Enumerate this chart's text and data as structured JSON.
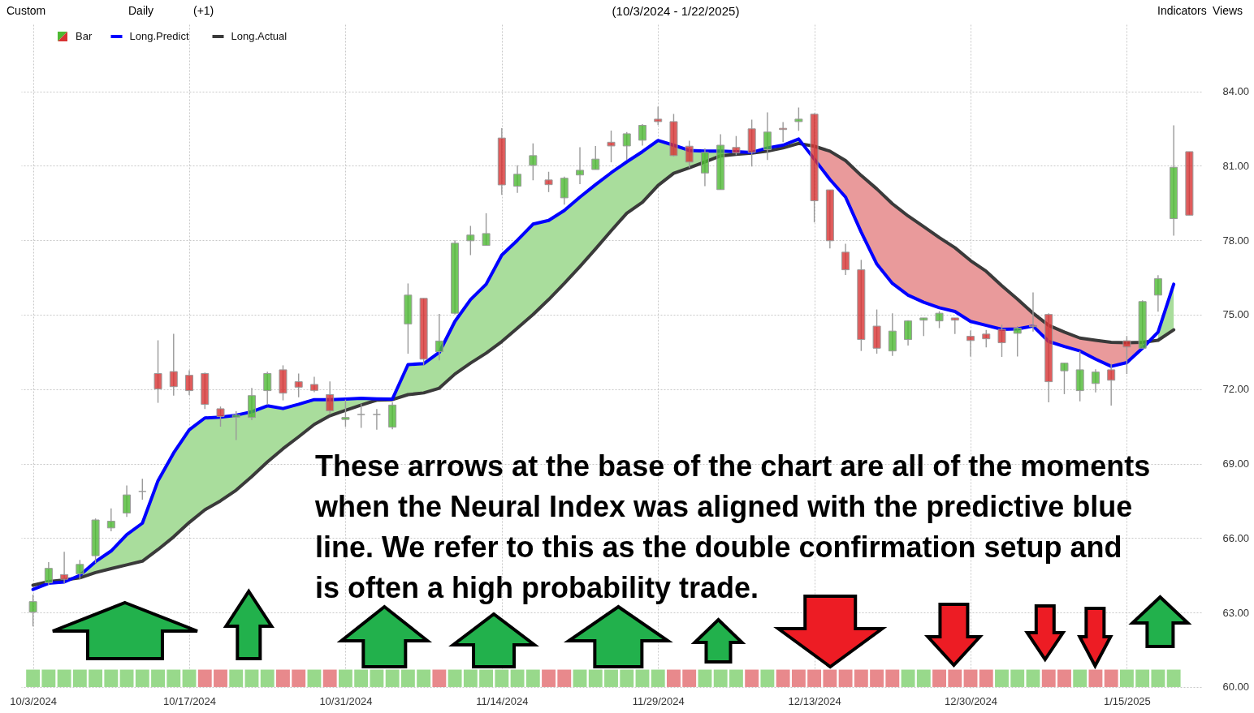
{
  "chart_data": {
    "type": "candlestick",
    "title": "(10/3/2024 - 1/22/2025)",
    "categories": [
      "10/3/2024",
      null,
      null,
      null,
      null,
      null,
      null,
      null,
      null,
      null,
      "10/17/2024",
      null,
      null,
      null,
      null,
      null,
      null,
      null,
      null,
      null,
      "10/31/2024",
      null,
      null,
      null,
      null,
      null,
      null,
      null,
      null,
      null,
      "11/14/2024",
      null,
      null,
      null,
      null,
      null,
      null,
      null,
      null,
      null,
      "11/29/2024",
      null,
      null,
      null,
      null,
      null,
      null,
      null,
      null,
      null,
      "12/13/2024",
      null,
      null,
      null,
      null,
      null,
      null,
      null,
      null,
      null,
      "12/30/2024",
      null,
      null,
      null,
      null,
      null,
      null,
      null,
      null,
      null,
      "1/15/2025",
      null,
      null,
      null,
      null
    ],
    "series": [
      {
        "name": "Bar",
        "ohlc": [
          [
            63.02,
            63.72,
            62.44,
            63.44
          ],
          [
            64.2,
            65.03,
            64.12,
            64.78
          ],
          [
            64.53,
            65.45,
            64.18,
            64.34
          ],
          [
            64.56,
            65.12,
            64.34,
            64.94
          ],
          [
            65.29,
            66.79,
            64.99,
            66.73
          ],
          [
            66.41,
            67.2,
            66.27,
            66.68
          ],
          [
            67.01,
            68.12,
            66.85,
            67.74
          ],
          [
            67.88,
            68.39,
            67.55,
            67.88
          ],
          [
            72.63,
            73.97,
            71.45,
            72.01
          ],
          [
            72.71,
            74.23,
            71.74,
            72.1
          ],
          [
            72.56,
            72.76,
            71.76,
            71.94
          ],
          [
            72.63,
            72.67,
            71.2,
            71.39
          ],
          [
            71.21,
            71.3,
            70.49,
            70.9
          ],
          [
            70.87,
            71.11,
            69.95,
            70.96
          ],
          [
            70.86,
            72.05,
            70.75,
            71.74
          ],
          [
            71.94,
            72.7,
            71.36,
            72.63
          ],
          [
            72.78,
            72.96,
            71.55,
            71.84
          ],
          [
            72.3,
            72.63,
            71.67,
            72.08
          ],
          [
            72.19,
            72.5,
            71.88,
            71.95
          ],
          [
            71.78,
            72.31,
            70.98,
            71.13
          ],
          [
            70.78,
            71.58,
            70.49,
            70.86
          ],
          [
            70.98,
            71.42,
            70.44,
            70.98
          ],
          [
            70.98,
            71.2,
            70.37,
            70.98
          ],
          [
            70.47,
            71.47,
            70.38,
            71.36
          ],
          [
            74.63,
            76.26,
            73.43,
            75.79
          ],
          [
            75.66,
            75.66,
            72.94,
            73.21
          ],
          [
            73.51,
            75.03,
            73.16,
            73.94
          ],
          [
            75.06,
            78.0,
            75.01,
            77.88
          ],
          [
            77.98,
            78.58,
            77.4,
            78.21
          ],
          [
            77.79,
            79.09,
            77.79,
            78.27
          ],
          [
            82.12,
            82.52,
            79.83,
            80.23
          ],
          [
            80.18,
            81.02,
            79.91,
            80.66
          ],
          [
            81.02,
            81.9,
            80.42,
            81.41
          ],
          [
            80.43,
            80.76,
            79.94,
            80.24
          ],
          [
            79.71,
            80.56,
            79.44,
            80.5
          ],
          [
            80.63,
            81.75,
            80.26,
            80.82
          ],
          [
            80.85,
            81.8,
            80.85,
            81.27
          ],
          [
            81.95,
            82.42,
            81.14,
            81.8
          ],
          [
            81.8,
            82.36,
            81.23,
            82.29
          ],
          [
            82.03,
            82.68,
            81.81,
            82.63
          ],
          [
            82.88,
            83.38,
            82.64,
            82.78
          ],
          [
            82.78,
            83.09,
            81.38,
            81.41
          ],
          [
            81.79,
            82.01,
            80.92,
            81.15
          ],
          [
            80.71,
            81.7,
            80.18,
            81.54
          ],
          [
            80.04,
            82.27,
            80.04,
            81.83
          ],
          [
            81.74,
            82.2,
            81.43,
            81.52
          ],
          [
            82.49,
            82.86,
            80.97,
            81.54
          ],
          [
            81.65,
            83.15,
            81.23,
            82.36
          ],
          [
            82.51,
            82.76,
            81.95,
            82.46
          ],
          [
            82.78,
            83.35,
            82.41,
            82.88
          ],
          [
            83.08,
            83.12,
            78.72,
            79.59
          ],
          [
            80.03,
            80.03,
            77.67,
            77.98
          ],
          [
            77.52,
            77.86,
            76.6,
            76.81
          ],
          [
            76.81,
            77.21,
            73.54,
            74.0
          ],
          [
            74.54,
            75.21,
            73.43,
            73.65
          ],
          [
            73.54,
            75.06,
            73.34,
            74.34
          ],
          [
            74.0,
            74.78,
            73.76,
            74.75
          ],
          [
            74.78,
            74.87,
            74.14,
            74.87
          ],
          [
            74.75,
            75.14,
            74.46,
            75.06
          ],
          [
            74.87,
            74.87,
            74.22,
            74.78
          ],
          [
            74.13,
            74.36,
            73.32,
            73.96
          ],
          [
            74.22,
            74.39,
            73.68,
            74.03
          ],
          [
            74.41,
            74.6,
            73.3,
            73.87
          ],
          [
            74.25,
            74.54,
            73.32,
            74.46
          ],
          [
            74.57,
            75.9,
            74.32,
            74.52
          ],
          [
            75.01,
            75.06,
            71.47,
            72.3
          ],
          [
            72.74,
            73.05,
            71.8,
            73.05
          ],
          [
            71.94,
            73.54,
            71.51,
            72.78
          ],
          [
            72.23,
            72.8,
            71.87,
            72.69
          ],
          [
            72.78,
            73.02,
            71.34,
            72.36
          ],
          [
            73.95,
            74.14,
            72.61,
            73.7
          ],
          [
            73.65,
            75.58,
            73.65,
            75.53
          ],
          [
            75.79,
            76.59,
            75.12,
            76.45
          ],
          [
            78.87,
            82.63,
            78.19,
            80.94
          ],
          [
            81.57,
            81.57,
            79.01,
            79.01
          ]
        ],
        "colors": [
          "#4dba33",
          "#4dba33",
          "#d83333",
          "#4dba33",
          "#4dba33",
          "#4dba33",
          "#4dba33",
          "#9a9a9a",
          "#d83333",
          "#d83333",
          "#d83333",
          "#d83333",
          "#d83333",
          "#4dba33",
          "#4dba33",
          "#4dba33",
          "#d83333",
          "#d83333",
          "#d83333",
          "#d83333",
          "#4dba33",
          "#9a9a9a",
          "#9a9a9a",
          "#4dba33",
          "#4dba33",
          "#d83333",
          "#4dba33",
          "#4dba33",
          "#4dba33",
          "#4dba33",
          "#d83333",
          "#4dba33",
          "#4dba33",
          "#d83333",
          "#4dba33",
          "#4dba33",
          "#4dba33",
          "#d83333",
          "#4dba33",
          "#4dba33",
          "#d83333",
          "#d83333",
          "#d83333",
          "#4dba33",
          "#4dba33",
          "#d83333",
          "#d83333",
          "#4dba33",
          "#d83333",
          "#4dba33",
          "#d83333",
          "#d83333",
          "#d83333",
          "#d83333",
          "#d83333",
          "#4dba33",
          "#4dba33",
          "#4dba33",
          "#4dba33",
          "#d83333",
          "#d83333",
          "#d83333",
          "#d83333",
          "#4dba33",
          "#d83333",
          "#d83333",
          "#4dba33",
          "#4dba33",
          "#4dba33",
          "#d83333",
          "#d83333",
          "#4dba33",
          "#4dba33",
          "#4dba33",
          "#d83333"
        ]
      },
      {
        "name": "Long.Predict",
        "type": "line",
        "color": "#0000ff",
        "values": [
          63.93,
          64.18,
          64.23,
          64.5,
          65.05,
          65.48,
          66.14,
          66.6,
          68.31,
          69.43,
          70.36,
          70.84,
          70.87,
          70.95,
          71.09,
          71.33,
          71.22,
          71.39,
          71.58,
          71.58,
          71.6,
          71.63,
          71.61,
          71.6,
          72.99,
          73.03,
          73.48,
          74.73,
          75.61,
          76.23,
          77.4,
          78.0,
          78.65,
          78.8,
          79.2,
          79.74,
          80.24,
          80.72,
          81.16,
          81.57,
          82.02,
          81.83,
          81.62,
          81.59,
          81.59,
          81.57,
          81.54,
          81.72,
          81.83,
          82.08,
          81.27,
          80.45,
          79.74,
          78.33,
          77.04,
          76.26,
          75.79,
          75.5,
          75.28,
          75.13,
          74.73,
          74.57,
          74.41,
          74.43,
          74.54,
          73.92,
          73.72,
          73.54,
          73.21,
          72.92,
          73.07,
          73.65,
          74.3,
          76.23,
          null
        ],
        "lower": [
          null,
          null,
          null,
          64.4,
          64.61,
          64.77,
          64.92,
          65.07,
          65.54,
          66.05,
          66.63,
          67.14,
          67.5,
          67.93,
          68.48,
          69.07,
          69.6,
          70.08,
          70.58,
          70.93,
          71.15,
          71.36,
          71.56,
          71.58,
          71.78,
          71.85,
          72.04,
          72.61,
          73.05,
          73.45,
          73.92,
          74.46,
          75.01,
          75.61,
          76.26,
          76.94,
          77.65,
          78.38,
          79.09,
          79.53,
          80.21,
          80.7,
          80.92,
          81.16,
          81.4,
          81.46,
          81.51,
          81.59,
          81.72,
          81.9,
          null,
          null,
          null,
          null,
          null,
          null,
          null,
          null,
          null,
          null,
          null,
          null,
          null,
          null,
          null,
          null,
          null,
          null,
          null,
          null,
          null,
          null,
          73.97,
          74.39,
          null
        ],
        "upper": [
          null,
          null,
          null,
          64.5,
          65.05,
          65.48,
          66.14,
          66.6,
          68.31,
          69.43,
          70.36,
          70.84,
          70.87,
          70.95,
          71.09,
          71.33,
          71.22,
          71.39,
          71.58,
          71.58,
          71.6,
          71.63,
          71.61,
          71.6,
          72.99,
          73.03,
          73.48,
          74.73,
          75.61,
          76.23,
          77.4,
          78.0,
          78.65,
          78.8,
          79.2,
          79.74,
          80.24,
          80.72,
          81.16,
          81.57,
          82.02,
          81.83,
          81.62,
          81.59,
          81.59,
          81.57,
          81.54,
          81.72,
          81.83,
          82.08,
          null,
          null,
          null,
          null,
          null,
          null,
          null,
          null,
          null,
          null,
          null,
          null,
          null,
          null,
          null,
          null,
          null,
          null,
          null,
          null,
          null,
          null,
          74.3,
          76.23,
          null
        ]
      },
      {
        "name": "Long.Actual",
        "type": "line",
        "color": "#3a3a3a",
        "values": [
          64.1,
          64.25,
          64.31,
          64.4,
          64.61,
          64.77,
          64.92,
          65.07,
          65.54,
          66.05,
          66.63,
          67.14,
          67.5,
          67.93,
          68.48,
          69.07,
          69.6,
          70.08,
          70.58,
          70.93,
          71.15,
          71.36,
          71.56,
          71.58,
          71.78,
          71.85,
          72.04,
          72.61,
          73.05,
          73.45,
          73.92,
          74.46,
          75.01,
          75.61,
          76.26,
          76.94,
          77.65,
          78.38,
          79.09,
          79.53,
          80.21,
          80.7,
          80.92,
          81.16,
          81.4,
          81.46,
          81.51,
          81.59,
          81.72,
          81.9,
          81.79,
          81.59,
          81.21,
          80.61,
          80.07,
          79.47,
          78.98,
          78.55,
          78.11,
          77.7,
          77.18,
          76.75,
          76.17,
          75.63,
          75.06,
          74.57,
          74.3,
          74.06,
          73.97,
          73.89,
          73.87,
          73.89,
          73.97,
          74.39,
          null
        ],
        "lower": [
          null,
          null,
          null,
          null,
          null,
          null,
          null,
          null,
          null,
          null,
          null,
          null,
          null,
          null,
          null,
          null,
          null,
          null,
          null,
          null,
          null,
          null,
          null,
          null,
          null,
          null,
          null,
          null,
          null,
          null,
          null,
          null,
          null,
          null,
          null,
          null,
          null,
          null,
          null,
          null,
          null,
          null,
          null,
          null,
          null,
          null,
          null,
          null,
          null,
          null,
          81.27,
          80.45,
          79.74,
          78.33,
          77.04,
          76.26,
          75.79,
          75.5,
          75.28,
          75.13,
          74.73,
          74.57,
          74.41,
          74.43,
          74.54,
          73.92,
          73.72,
          73.54,
          73.21,
          72.92,
          73.07,
          73.65,
          null,
          null,
          null
        ],
        "upper": [
          null,
          null,
          null,
          null,
          null,
          null,
          null,
          null,
          null,
          null,
          null,
          null,
          null,
          null,
          null,
          null,
          null,
          null,
          null,
          null,
          null,
          null,
          null,
          null,
          null,
          null,
          null,
          null,
          null,
          null,
          null,
          null,
          null,
          null,
          null,
          null,
          null,
          null,
          null,
          null,
          null,
          null,
          null,
          null,
          null,
          null,
          null,
          null,
          null,
          null,
          81.79,
          81.59,
          81.21,
          80.61,
          80.07,
          79.47,
          78.98,
          78.55,
          78.11,
          77.7,
          77.18,
          76.75,
          76.17,
          75.63,
          75.06,
          74.57,
          74.3,
          74.06,
          73.97,
          73.89,
          73.87,
          73.89,
          null,
          null,
          null
        ]
      },
      {
        "type": "bar",
        "base": [
          60,
          60,
          60,
          60,
          60,
          60,
          60,
          60,
          60,
          60,
          60,
          60,
          60,
          60,
          60,
          60,
          60,
          60,
          60,
          60,
          60,
          60,
          60,
          60,
          60,
          60,
          60,
          60,
          60,
          60,
          60,
          60,
          60,
          60,
          60,
          60,
          60,
          60,
          60,
          60,
          60,
          60,
          60,
          60,
          60,
          60,
          60,
          60,
          60,
          60,
          60,
          60,
          60,
          60,
          60,
          60,
          60,
          60,
          60,
          60,
          60,
          60,
          60,
          60,
          60,
          60,
          60,
          60,
          60,
          60,
          60,
          60,
          60,
          60,
          null
        ],
        "values": [
          0.7,
          0.7,
          0.7,
          0.7,
          0.7,
          0.7,
          0.7,
          0.7,
          0.7,
          0.7,
          0.7,
          0.7,
          0.7,
          0.7,
          0.7,
          0.7,
          0.7,
          0.7,
          0.7,
          0.7,
          0.7,
          0.7,
          0.7,
          0.7,
          0.7,
          0.7,
          0.7,
          0.7,
          0.7,
          0.7,
          0.7,
          0.7,
          0.7,
          0.7,
          0.7,
          0.7,
          0.7,
          0.7,
          0.7,
          0.7,
          0.7,
          0.7,
          0.7,
          0.7,
          0.7,
          0.7,
          0.7,
          0.7,
          0.7,
          0.7,
          0.7,
          0.7,
          0.7,
          0.7,
          0.7,
          0.7,
          0.7,
          0.7,
          0.7,
          0.7,
          0.7,
          0.7,
          0.7,
          0.7,
          0.7,
          0.7,
          0.7,
          0.7,
          0.7,
          0.7,
          0.7,
          0.7,
          0.7,
          0.7,
          null
        ],
        "colors": [
          "#98d98b",
          "#98d98b",
          "#98d98b",
          "#98d98b",
          "#98d98b",
          "#98d98b",
          "#98d98b",
          "#98d98b",
          "#98d98b",
          "#98d98b",
          "#98d98b",
          "#e8898c",
          "#e8898c",
          "#98d98b",
          "#98d98b",
          "#98d98b",
          "#e8898c",
          "#e8898c",
          "#98d98b",
          "#e8898c",
          "#98d98b",
          "#98d98b",
          "#98d98b",
          "#98d98b",
          "#98d98b",
          "#98d98b",
          "#e8898c",
          "#98d98b",
          "#98d98b",
          "#98d98b",
          "#98d98b",
          "#98d98b",
          "#98d98b",
          "#e8898c",
          "#e8898c",
          "#98d98b",
          "#98d98b",
          "#98d98b",
          "#98d98b",
          "#98d98b",
          "#98d98b",
          "#e8898c",
          "#e8898c",
          "#98d98b",
          "#98d98b",
          "#98d98b",
          "#e8898c",
          "#98d98b",
          "#e8898c",
          "#e8898c",
          "#e8898c",
          "#e8898c",
          "#e8898c",
          "#e8898c",
          "#e8898c",
          "#e8898c",
          "#98d98b",
          "#98d98b",
          "#e8898c",
          "#e8898c",
          "#e8898c",
          "#e8898c",
          "#98d98b",
          "#98d98b",
          "#98d98b",
          "#e8898c",
          "#e8898c",
          "#98d98b",
          "#e8898c",
          "#e8898c",
          "#98d98b",
          "#98d98b",
          "#98d98b",
          "#98d98b",
          null
        ]
      }
    ],
    "ylim": [
      59.9,
      86.7
    ],
    "yticks": [
      {
        "value": 60,
        "label": "60.00"
      },
      {
        "value": 63,
        "label": "63.00"
      },
      {
        "value": 66,
        "label": "66.00"
      },
      {
        "value": 69,
        "label": "69.00"
      },
      {
        "value": 72,
        "label": "72.00"
      },
      {
        "value": 75,
        "label": "75.00"
      },
      {
        "value": 78,
        "label": "78.00"
      },
      {
        "value": 81,
        "label": "81.00"
      },
      {
        "value": 84,
        "label": "84.00"
      }
    ],
    "grid": true,
    "legend": "top left",
    "annotations": [
      "These arrows at the base of the chart are all of the moments\nwhen the Neural Index was aligned with the predictive blue\nline.  We refer to this as the double confirmation setup and\nis often a high probability trade.",
      "Custom",
      "Daily",
      "(+1)",
      "Indicators",
      "Views"
    ]
  }
}
